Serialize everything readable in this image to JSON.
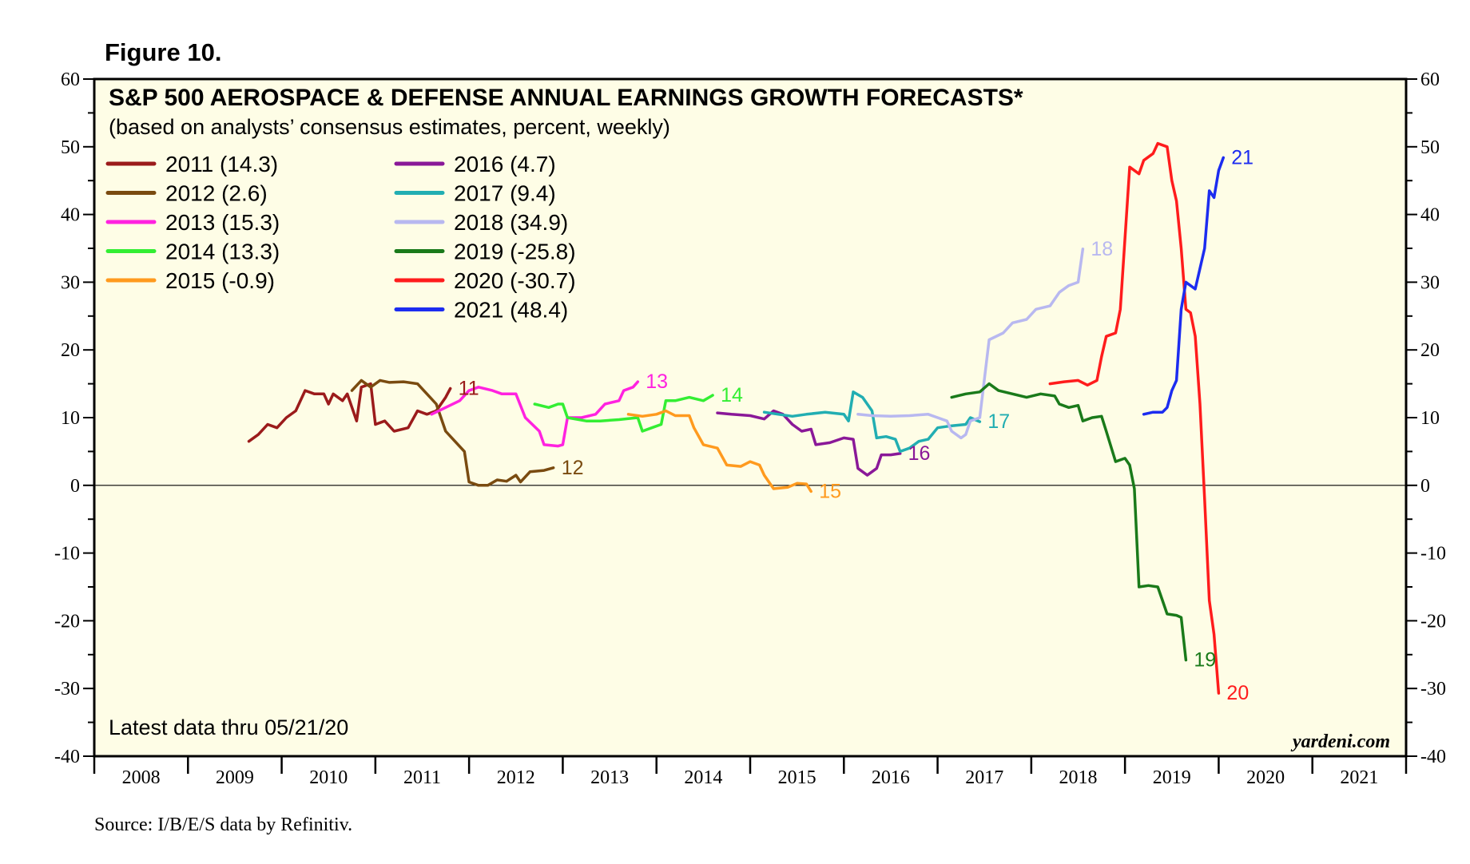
{
  "figure_label": "Figure 10.",
  "source": "Source: I/B/E/S data by Refinitiv.",
  "brand": "yardeni.com",
  "note": "Latest data thru 05/21/20",
  "chart_data": {
    "type": "line",
    "title": "S&P 500 AEROSPACE & DEFENSE ANNUAL EARNINGS GROWTH FORECASTS*",
    "subtitle": "(based on analysts’ consensus estimates, percent, weekly)",
    "xlabel": "",
    "ylabel": "",
    "ylim": [
      -40,
      60
    ],
    "xlim": [
      2008,
      2022
    ],
    "y_ticks": [
      60,
      50,
      40,
      30,
      20,
      10,
      0,
      -10,
      -20,
      -30,
      -40
    ],
    "x_tick_labels": [
      "2008",
      "2009",
      "2010",
      "2011",
      "2012",
      "2013",
      "2014",
      "2015",
      "2016",
      "2017",
      "2018",
      "2019",
      "2020",
      "2021"
    ],
    "zero_line": true,
    "background": "#fefde6",
    "series": [
      {
        "name": "2011",
        "legend": "2011 (14.3)",
        "end_label": "11",
        "color": "#9b1b1b",
        "points": [
          [
            2009.65,
            6.5
          ],
          [
            2009.75,
            7.5
          ],
          [
            2009.85,
            9
          ],
          [
            2009.95,
            8.5
          ],
          [
            2010.05,
            10
          ],
          [
            2010.15,
            11
          ],
          [
            2010.25,
            14
          ],
          [
            2010.35,
            13.5
          ],
          [
            2010.45,
            13.5
          ],
          [
            2010.5,
            12
          ],
          [
            2010.55,
            13.5
          ],
          [
            2010.65,
            12.5
          ],
          [
            2010.7,
            13.5
          ],
          [
            2010.8,
            9.5
          ],
          [
            2010.85,
            14.5
          ],
          [
            2010.95,
            15
          ],
          [
            2011.0,
            9
          ],
          [
            2011.1,
            9.5
          ],
          [
            2011.2,
            8
          ],
          [
            2011.35,
            8.5
          ],
          [
            2011.45,
            11
          ],
          [
            2011.55,
            10.5
          ],
          [
            2011.65,
            11
          ],
          [
            2011.75,
            13
          ],
          [
            2011.8,
            14.3
          ]
        ]
      },
      {
        "name": "2012",
        "legend": "2012 (2.6)",
        "end_label": "12",
        "color": "#7a4b10",
        "points": [
          [
            2010.75,
            14
          ],
          [
            2010.85,
            15.5
          ],
          [
            2010.95,
            14.5
          ],
          [
            2011.05,
            15.5
          ],
          [
            2011.15,
            15.2
          ],
          [
            2011.3,
            15.3
          ],
          [
            2011.45,
            15
          ],
          [
            2011.55,
            13.5
          ],
          [
            2011.65,
            12
          ],
          [
            2011.75,
            8
          ],
          [
            2011.85,
            6.5
          ],
          [
            2011.95,
            5
          ],
          [
            2012.0,
            0.5
          ],
          [
            2012.1,
            0
          ],
          [
            2012.2,
            0
          ],
          [
            2012.3,
            0.8
          ],
          [
            2012.4,
            0.6
          ],
          [
            2012.5,
            1.5
          ],
          [
            2012.55,
            0.5
          ],
          [
            2012.65,
            2
          ],
          [
            2012.8,
            2.2
          ],
          [
            2012.9,
            2.6
          ]
        ]
      },
      {
        "name": "2013",
        "legend": "2013 (15.3)",
        "end_label": "13",
        "color": "#ff22e0",
        "points": [
          [
            2011.6,
            10.5
          ],
          [
            2011.75,
            11.5
          ],
          [
            2011.9,
            12.5
          ],
          [
            2012.0,
            14
          ],
          [
            2012.1,
            14.5
          ],
          [
            2012.25,
            14
          ],
          [
            2012.35,
            13.5
          ],
          [
            2012.5,
            13.5
          ],
          [
            2012.6,
            10
          ],
          [
            2012.75,
            8
          ],
          [
            2012.8,
            6
          ],
          [
            2012.95,
            5.8
          ],
          [
            2013.0,
            6
          ],
          [
            2013.05,
            10
          ],
          [
            2013.2,
            10
          ],
          [
            2013.35,
            10.5
          ],
          [
            2013.45,
            12
          ],
          [
            2013.6,
            12.5
          ],
          [
            2013.65,
            14
          ],
          [
            2013.75,
            14.5
          ],
          [
            2013.8,
            15.3
          ]
        ]
      },
      {
        "name": "2014",
        "legend": "2014 (13.3)",
        "end_label": "14",
        "color": "#33ee33",
        "points": [
          [
            2012.7,
            12
          ],
          [
            2012.85,
            11.5
          ],
          [
            2012.95,
            12
          ],
          [
            2013.0,
            12
          ],
          [
            2013.05,
            10
          ],
          [
            2013.25,
            9.5
          ],
          [
            2013.4,
            9.5
          ],
          [
            2013.6,
            9.7
          ],
          [
            2013.8,
            10
          ],
          [
            2013.85,
            8
          ],
          [
            2013.95,
            8.5
          ],
          [
            2014.05,
            9
          ],
          [
            2014.1,
            12.5
          ],
          [
            2014.2,
            12.5
          ],
          [
            2014.35,
            13
          ],
          [
            2014.5,
            12.5
          ],
          [
            2014.6,
            13.3
          ]
        ]
      },
      {
        "name": "2015",
        "legend": "2015 (-0.9)",
        "end_label": "15",
        "color": "#ff9a1e",
        "points": [
          [
            2013.7,
            10.5
          ],
          [
            2013.85,
            10.2
          ],
          [
            2014.0,
            10.5
          ],
          [
            2014.1,
            11
          ],
          [
            2014.2,
            10.3
          ],
          [
            2014.35,
            10.3
          ],
          [
            2014.4,
            8.5
          ],
          [
            2014.5,
            6
          ],
          [
            2014.65,
            5.5
          ],
          [
            2014.75,
            3
          ],
          [
            2014.9,
            2.8
          ],
          [
            2015.0,
            3.5
          ],
          [
            2015.1,
            3
          ],
          [
            2015.15,
            1.5
          ],
          [
            2015.25,
            -0.5
          ],
          [
            2015.4,
            -0.3
          ],
          [
            2015.5,
            0.3
          ],
          [
            2015.6,
            0.2
          ],
          [
            2015.65,
            -0.9
          ]
        ]
      },
      {
        "name": "2016",
        "legend": "2016 (4.7)",
        "end_label": "16",
        "color": "#8a1898",
        "points": [
          [
            2014.65,
            10.7
          ],
          [
            2014.8,
            10.5
          ],
          [
            2015.0,
            10.3
          ],
          [
            2015.15,
            9.8
          ],
          [
            2015.25,
            11
          ],
          [
            2015.35,
            10.5
          ],
          [
            2015.45,
            9
          ],
          [
            2015.55,
            8
          ],
          [
            2015.65,
            8.3
          ],
          [
            2015.7,
            6
          ],
          [
            2015.85,
            6.3
          ],
          [
            2016.0,
            7
          ],
          [
            2016.1,
            6.8
          ],
          [
            2016.15,
            2.5
          ],
          [
            2016.25,
            1.5
          ],
          [
            2016.35,
            2.5
          ],
          [
            2016.4,
            4.5
          ],
          [
            2016.5,
            4.5
          ],
          [
            2016.6,
            4.7
          ]
        ]
      },
      {
        "name": "2017",
        "legend": "2017 (9.4)",
        "end_label": "17",
        "color": "#22aeb2",
        "points": [
          [
            2015.15,
            10.8
          ],
          [
            2015.3,
            10.5
          ],
          [
            2015.45,
            10.2
          ],
          [
            2015.6,
            10.5
          ],
          [
            2015.8,
            10.8
          ],
          [
            2016.0,
            10.5
          ],
          [
            2016.05,
            9.5
          ],
          [
            2016.1,
            13.8
          ],
          [
            2016.2,
            13
          ],
          [
            2016.3,
            11
          ],
          [
            2016.35,
            7
          ],
          [
            2016.45,
            7.2
          ],
          [
            2016.55,
            6.8
          ],
          [
            2016.6,
            5
          ],
          [
            2016.7,
            5.5
          ],
          [
            2016.8,
            6.5
          ],
          [
            2016.9,
            6.8
          ],
          [
            2017.0,
            8.5
          ],
          [
            2017.15,
            8.8
          ],
          [
            2017.3,
            9
          ],
          [
            2017.35,
            10
          ],
          [
            2017.45,
            9.4
          ]
        ]
      },
      {
        "name": "2018",
        "legend": "2018 (34.9)",
        "end_label": "18",
        "color": "#b8b8f0",
        "points": [
          [
            2016.15,
            10.5
          ],
          [
            2016.3,
            10.3
          ],
          [
            2016.5,
            10.2
          ],
          [
            2016.7,
            10.3
          ],
          [
            2016.9,
            10.5
          ],
          [
            2017.0,
            10
          ],
          [
            2017.1,
            9.5
          ],
          [
            2017.15,
            8
          ],
          [
            2017.25,
            7
          ],
          [
            2017.3,
            7.5
          ],
          [
            2017.35,
            9.5
          ],
          [
            2017.45,
            10
          ],
          [
            2017.55,
            21.5
          ],
          [
            2017.7,
            22.5
          ],
          [
            2017.8,
            24
          ],
          [
            2017.95,
            24.5
          ],
          [
            2018.05,
            26
          ],
          [
            2018.2,
            26.5
          ],
          [
            2018.3,
            28.5
          ],
          [
            2018.4,
            29.5
          ],
          [
            2018.5,
            30
          ],
          [
            2018.55,
            34.9
          ]
        ]
      },
      {
        "name": "2019",
        "legend": "2019 (-25.8)",
        "end_label": "19",
        "color": "#1a7a1a",
        "points": [
          [
            2017.15,
            13
          ],
          [
            2017.3,
            13.5
          ],
          [
            2017.45,
            13.8
          ],
          [
            2017.55,
            15
          ],
          [
            2017.65,
            14
          ],
          [
            2017.8,
            13.5
          ],
          [
            2017.95,
            13
          ],
          [
            2018.1,
            13.5
          ],
          [
            2018.25,
            13.2
          ],
          [
            2018.3,
            12
          ],
          [
            2018.4,
            11.5
          ],
          [
            2018.5,
            11.8
          ],
          [
            2018.55,
            9.5
          ],
          [
            2018.65,
            10
          ],
          [
            2018.75,
            10.2
          ],
          [
            2018.8,
            8
          ],
          [
            2018.9,
            3.5
          ],
          [
            2019.0,
            4
          ],
          [
            2019.05,
            3
          ],
          [
            2019.1,
            -0.5
          ],
          [
            2019.15,
            -15
          ],
          [
            2019.25,
            -14.8
          ],
          [
            2019.35,
            -15
          ],
          [
            2019.4,
            -17
          ],
          [
            2019.45,
            -19
          ],
          [
            2019.55,
            -19.2
          ],
          [
            2019.6,
            -19.5
          ],
          [
            2019.65,
            -25.8
          ]
        ]
      },
      {
        "name": "2020",
        "legend": "2020 (-30.7)",
        "end_label": "20",
        "color": "#ff1c1c",
        "points": [
          [
            2018.2,
            15
          ],
          [
            2018.35,
            15.3
          ],
          [
            2018.5,
            15.5
          ],
          [
            2018.6,
            14.8
          ],
          [
            2018.7,
            15.5
          ],
          [
            2018.75,
            19
          ],
          [
            2018.8,
            22
          ],
          [
            2018.9,
            22.5
          ],
          [
            2018.95,
            26
          ],
          [
            2019.05,
            47
          ],
          [
            2019.15,
            46
          ],
          [
            2019.2,
            48
          ],
          [
            2019.3,
            49
          ],
          [
            2019.35,
            50.5
          ],
          [
            2019.45,
            50
          ],
          [
            2019.5,
            45
          ],
          [
            2019.55,
            42
          ],
          [
            2019.6,
            35
          ],
          [
            2019.65,
            26
          ],
          [
            2019.7,
            25.5
          ],
          [
            2019.75,
            22
          ],
          [
            2019.8,
            12
          ],
          [
            2019.85,
            -2
          ],
          [
            2019.9,
            -17
          ],
          [
            2019.95,
            -22
          ],
          [
            2020.0,
            -30.7
          ]
        ]
      },
      {
        "name": "2021",
        "legend": "2021 (48.4)",
        "end_label": "21",
        "color": "#1c2cf0",
        "points": [
          [
            2019.2,
            10.5
          ],
          [
            2019.3,
            10.8
          ],
          [
            2019.4,
            10.8
          ],
          [
            2019.45,
            11.5
          ],
          [
            2019.5,
            14
          ],
          [
            2019.55,
            15.5
          ],
          [
            2019.6,
            26
          ],
          [
            2019.65,
            30
          ],
          [
            2019.75,
            29
          ],
          [
            2019.85,
            35
          ],
          [
            2019.9,
            43.5
          ],
          [
            2019.95,
            42.5
          ],
          [
            2020.0,
            46.5
          ],
          [
            2020.05,
            48.4
          ]
        ]
      }
    ]
  }
}
